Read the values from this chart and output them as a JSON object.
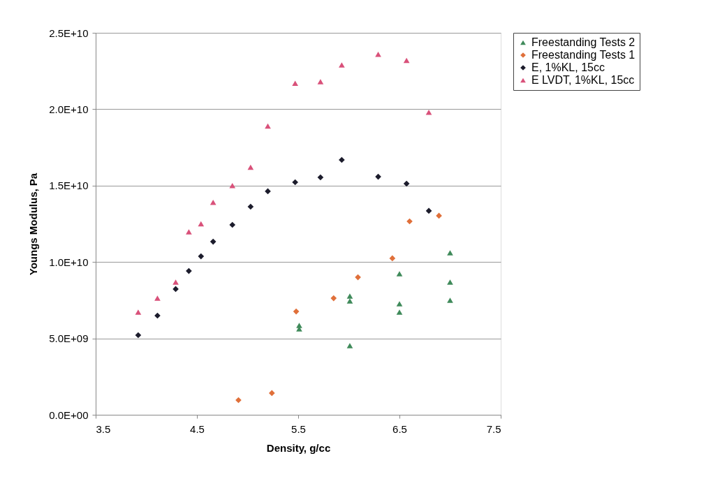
{
  "chart_data": {
    "type": "scatter",
    "xlabel": "Density, g/cc",
    "ylabel": "Youngs Modulus, Pa",
    "xlim": [
      3.5,
      7.5
    ],
    "xticks": [
      3.5,
      4.5,
      5.5,
      6.5,
      7.5
    ],
    "ylim": [
      0,
      25000000000
    ],
    "yticks": [
      {
        "value": 0,
        "label": "0.0E+00"
      },
      {
        "value": 5000000000,
        "label": "5.0E+09"
      },
      {
        "value": 10000000000,
        "label": "1.0E+10"
      },
      {
        "value": 15000000000,
        "label": "1.5E+10"
      },
      {
        "value": 20000000000,
        "label": "2.0E+10"
      },
      {
        "value": 25000000000,
        "label": "2.5E+10"
      }
    ],
    "grid": "y",
    "legend": "right",
    "series": [
      {
        "name": "Freestanding Tests 2",
        "color": "#3f8a5a",
        "marker": "triangle",
        "x": [
          5.51,
          5.51,
          6.01,
          6.01,
          6.01,
          6.5,
          6.5,
          6.5,
          7.0,
          7.0,
          7.0
        ],
        "values": [
          5850000000,
          5620000000,
          7770000000,
          7450000000,
          4520000000,
          9230000000,
          7270000000,
          6720000000,
          10600000000,
          8680000000,
          7500000000
        ]
      },
      {
        "name": "Freestanding Tests 1",
        "color": "#e0703a",
        "marker": "diamond",
        "x": [
          4.91,
          5.24,
          5.48,
          5.85,
          6.09,
          6.43,
          6.6,
          6.89
        ],
        "values": [
          960000000,
          1420000000,
          6760000000,
          7630000000,
          9000000000,
          10240000000,
          12660000000,
          13030000000
        ]
      },
      {
        "name": "E, 1%KL, 15cc",
        "color": "#1c1c2c",
        "marker": "diamond",
        "x": [
          3.92,
          4.11,
          4.29,
          4.42,
          4.54,
          4.66,
          4.85,
          5.03,
          5.2,
          5.47,
          5.72,
          5.93,
          6.29,
          6.57,
          6.79
        ],
        "values": [
          5210000000,
          6490000000,
          8230000000,
          9410000000,
          10370000000,
          11330000000,
          12430000000,
          13620000000,
          14630000000,
          15220000000,
          15540000000,
          16680000000,
          15580000000,
          15130000000,
          13350000000
        ]
      },
      {
        "name": "E LVDT, 1%KL, 15cc",
        "color": "#d9517a",
        "marker": "triangle",
        "x": [
          3.92,
          4.11,
          4.29,
          4.42,
          4.54,
          4.66,
          4.85,
          5.03,
          5.2,
          5.47,
          5.72,
          5.93,
          6.29,
          6.57,
          6.79
        ],
        "values": [
          6720000000,
          7630000000,
          8680000000,
          11970000000,
          12500000000,
          13900000000,
          15000000000,
          16200000000,
          18900000000,
          21700000000,
          21800000000,
          22900000000,
          23600000000,
          23200000000,
          19800000000
        ]
      }
    ]
  }
}
